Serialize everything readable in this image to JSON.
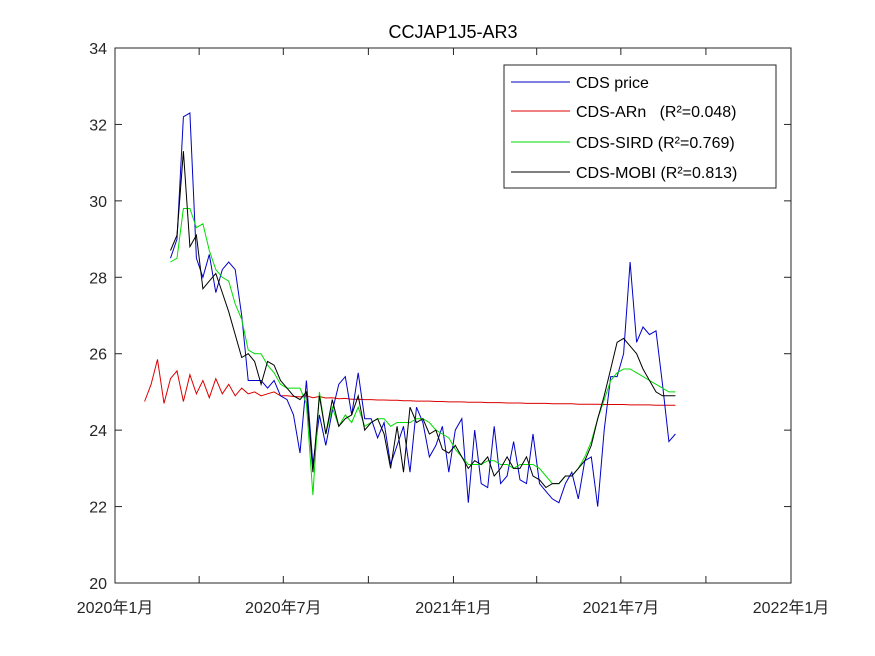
{
  "chart_data": {
    "type": "line",
    "title": "CCJAP1J5-AR3",
    "xlabel": "",
    "ylabel": "",
    "ylim": [
      20,
      34
    ],
    "yticks": [
      20,
      22,
      24,
      26,
      28,
      30,
      32,
      34
    ],
    "xlim": [
      "2020-01-01",
      "2022-01-01"
    ],
    "xticks": [
      {
        "date": "2020-01-01",
        "label": "2020年1月"
      },
      {
        "date": "2020-04-01",
        "label": ""
      },
      {
        "date": "2020-07-01",
        "label": "2020年7月"
      },
      {
        "date": "2020-10-01",
        "label": ""
      },
      {
        "date": "2021-01-01",
        "label": "2021年1月"
      },
      {
        "date": "2021-04-01",
        "label": ""
      },
      {
        "date": "2021-07-01",
        "label": "2021年7月"
      },
      {
        "date": "2021-10-01",
        "label": ""
      },
      {
        "date": "2022-01-01",
        "label": "2022年1月"
      }
    ],
    "grid": false,
    "legend_position": "top-right",
    "colors": {
      "axis": "#262626",
      "cds_price": "#0000c8",
      "ar": "#dc0000",
      "sird": "#00dc00",
      "mobi": "#000000"
    },
    "x": [
      "2020-02-02",
      "2020-02-09",
      "2020-02-16",
      "2020-02-23",
      "2020-03-01",
      "2020-03-08",
      "2020-03-15",
      "2020-03-22",
      "2020-03-29",
      "2020-04-05",
      "2020-04-12",
      "2020-04-19",
      "2020-04-26",
      "2020-05-03",
      "2020-05-10",
      "2020-05-17",
      "2020-05-24",
      "2020-05-31",
      "2020-06-07",
      "2020-06-14",
      "2020-06-21",
      "2020-06-28",
      "2020-07-05",
      "2020-07-12",
      "2020-07-19",
      "2020-07-26",
      "2020-08-02",
      "2020-08-09",
      "2020-08-16",
      "2020-08-23",
      "2020-08-30",
      "2020-09-06",
      "2020-09-13",
      "2020-09-20",
      "2020-09-27",
      "2020-10-04",
      "2020-10-11",
      "2020-10-18",
      "2020-10-25",
      "2020-11-01",
      "2020-11-08",
      "2020-11-15",
      "2020-11-22",
      "2020-11-29",
      "2020-12-06",
      "2020-12-13",
      "2020-12-20",
      "2020-12-27",
      "2021-01-03",
      "2021-01-10",
      "2021-01-17",
      "2021-01-24",
      "2021-01-31",
      "2021-02-07",
      "2021-02-14",
      "2021-02-21",
      "2021-02-28",
      "2021-03-07",
      "2021-03-14",
      "2021-03-21",
      "2021-03-28",
      "2021-04-04",
      "2021-04-11",
      "2021-04-18",
      "2021-04-25",
      "2021-05-02",
      "2021-05-09",
      "2021-05-16",
      "2021-05-23",
      "2021-05-30",
      "2021-06-06",
      "2021-06-13",
      "2021-06-20",
      "2021-06-27",
      "2021-07-04",
      "2021-07-11",
      "2021-07-18",
      "2021-07-25",
      "2021-08-01",
      "2021-08-08",
      "2021-08-15",
      "2021-08-22",
      "2021-08-29",
      "2021-09-05",
      "2021-09-12",
      "2021-09-19",
      "2021-09-26",
      "2021-10-03",
      "2021-10-10",
      "2021-10-17",
      "2021-10-24",
      "2021-10-31",
      "2021-11-07",
      "2021-11-14",
      "2021-11-21",
      "2021-11-28",
      "2021-12-05"
    ],
    "series": [
      {
        "name": "CDS price",
        "color": "#0000c8",
        "values": [
          null,
          null,
          null,
          null,
          28.5,
          29.0,
          32.2,
          32.3,
          28.5,
          28.0,
          28.6,
          27.6,
          28.2,
          28.4,
          28.2,
          27.0,
          25.3,
          25.3,
          25.3,
          25.1,
          25.3,
          24.9,
          24.8,
          24.4,
          23.4,
          25.3,
          23.1,
          24.4,
          23.6,
          24.5,
          25.2,
          25.4,
          24.4,
          25.5,
          24.3,
          24.3,
          23.8,
          24.2,
          23.1,
          23.6,
          24.1,
          22.9,
          24.6,
          24.2,
          23.3,
          23.6,
          24.1,
          22.9,
          24.0,
          24.3,
          22.1,
          24.0,
          22.6,
          22.5,
          24.1,
          22.6,
          22.8,
          23.7,
          22.7,
          22.6,
          23.9,
          22.6,
          22.4,
          22.2,
          22.1,
          22.6,
          22.9,
          22.2,
          23.2,
          23.3,
          22.0,
          24.0,
          25.4,
          25.4,
          26.0,
          28.4,
          26.3,
          26.7,
          26.5,
          26.6,
          25.2,
          23.7,
          23.9,
          null,
          null,
          null,
          null,
          null,
          null,
          null,
          null,
          null,
          null,
          null,
          null,
          null,
          null
        ]
      },
      {
        "name": "CDS-ARn   (R²=0.048)",
        "color": "#dc0000",
        "values": [
          24.75,
          25.2,
          25.85,
          24.7,
          25.35,
          25.55,
          24.75,
          25.45,
          24.95,
          25.3,
          24.85,
          25.35,
          24.95,
          25.2,
          24.9,
          25.1,
          24.95,
          25.0,
          24.9,
          24.95,
          25.0,
          24.9,
          24.9,
          24.88,
          24.87,
          24.9,
          24.85,
          24.88,
          24.84,
          24.85,
          24.82,
          24.83,
          24.81,
          24.81,
          24.8,
          24.8,
          24.79,
          24.79,
          24.78,
          24.78,
          24.77,
          24.77,
          24.76,
          24.76,
          24.76,
          24.75,
          24.75,
          24.74,
          24.74,
          24.74,
          24.73,
          24.73,
          24.73,
          24.72,
          24.72,
          24.72,
          24.71,
          24.71,
          24.71,
          24.7,
          24.7,
          24.7,
          24.7,
          24.69,
          24.69,
          24.69,
          24.69,
          24.68,
          24.68,
          24.68,
          24.68,
          24.67,
          24.67,
          24.67,
          24.67,
          24.66,
          24.66,
          24.66,
          24.66,
          24.65,
          24.65,
          24.65,
          24.65,
          null,
          null,
          null,
          null,
          null,
          null,
          null,
          null,
          null,
          null,
          null,
          null,
          null,
          null
        ]
      },
      {
        "name": "CDS-SIRD (R²=0.769)",
        "color": "#00dc00",
        "values": [
          null,
          null,
          null,
          null,
          28.4,
          28.5,
          29.8,
          29.8,
          29.3,
          29.4,
          28.7,
          28.2,
          28.0,
          27.9,
          27.3,
          26.9,
          26.1,
          26.0,
          26.0,
          25.7,
          25.5,
          25.2,
          25.1,
          25.1,
          25.1,
          24.7,
          22.3,
          25.0,
          23.9,
          24.6,
          24.1,
          24.4,
          24.2,
          24.6,
          24.1,
          24.2,
          24.3,
          24.3,
          24.1,
          24.2,
          24.2,
          24.2,
          24.3,
          24.3,
          24.2,
          24.0,
          23.9,
          23.8,
          23.5,
          23.3,
          23.1,
          23.1,
          23.1,
          23.2,
          23.2,
          23.1,
          23.1,
          23.0,
          23.1,
          23.1,
          23.1,
          23.0,
          22.8,
          22.6,
          22.6,
          22.8,
          22.8,
          23.0,
          23.3,
          23.7,
          24.3,
          24.8,
          25.3,
          25.5,
          25.6,
          25.6,
          25.5,
          25.4,
          25.3,
          25.2,
          25.1,
          25.0,
          25.0,
          null,
          null,
          null,
          null,
          null,
          null,
          null,
          null,
          null,
          null,
          null,
          null,
          null,
          null
        ]
      },
      {
        "name": "CDS-MOBI (R²=0.813)",
        "color": "#000000",
        "values": [
          null,
          null,
          null,
          null,
          28.7,
          29.1,
          31.3,
          28.8,
          29.1,
          27.7,
          27.9,
          28.1,
          27.6,
          27.1,
          26.5,
          25.9,
          26.0,
          25.8,
          25.2,
          25.8,
          25.7,
          25.3,
          25.1,
          24.9,
          24.8,
          25.0,
          22.9,
          24.9,
          23.9,
          24.8,
          24.1,
          24.3,
          24.4,
          24.9,
          24.0,
          24.2,
          24.3,
          23.9,
          23.0,
          24.1,
          22.9,
          24.6,
          24.2,
          24.3,
          23.9,
          24.0,
          23.5,
          23.4,
          23.6,
          23.3,
          23.0,
          23.2,
          23.1,
          23.3,
          22.8,
          23.0,
          23.3,
          23.0,
          23.0,
          23.3,
          22.8,
          22.7,
          22.5,
          22.6,
          22.6,
          22.8,
          22.8,
          23.0,
          23.2,
          23.6,
          24.3,
          24.9,
          25.6,
          26.3,
          26.4,
          26.2,
          26.0,
          25.6,
          25.3,
          25.0,
          24.9,
          24.9,
          24.9,
          null,
          null,
          null,
          null,
          null,
          null,
          null,
          null,
          null,
          null,
          null,
          null,
          null,
          null
        ]
      }
    ]
  }
}
